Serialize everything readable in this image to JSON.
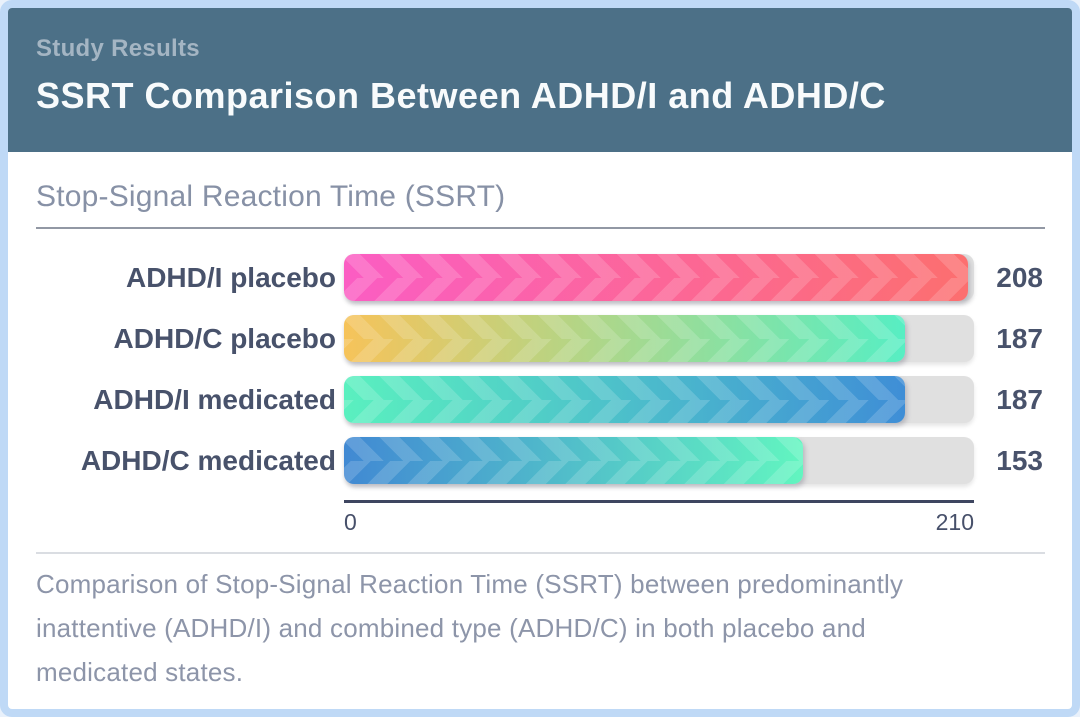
{
  "header": {
    "subtitle": "Study Results",
    "title": "SSRT Comparison Between ADHD/I and ADHD/C"
  },
  "chart_data": {
    "type": "bar",
    "orientation": "horizontal",
    "title": "Stop-Signal Reaction Time (SSRT)",
    "categories": [
      "ADHD/I placebo",
      "ADHD/C placebo",
      "ADHD/I medicated",
      "ADHD/C medicated"
    ],
    "values": [
      208,
      187,
      187,
      153
    ],
    "xlim": [
      0,
      210
    ],
    "x_tick_labels": [
      "0",
      "210"
    ],
    "bar_gradients": [
      [
        "#fb5dc3",
        "#fc6f6f"
      ],
      [
        "#f6c35a",
        "#57eec3"
      ],
      [
        "#5af0bf",
        "#3f8ed6"
      ],
      [
        "#4189d3",
        "#62f5c0"
      ]
    ],
    "track_color": "#e0e0e0",
    "grid": false,
    "legend": false
  },
  "caption": {
    "lines": [
      "Comparison of Stop-Signal Reaction Time (SSRT) between predominantly",
      "inattentive (ADHD/I) and combined type (ADHD/C) in both placebo and",
      "medicated states."
    ]
  },
  "colors": {
    "header_bg": "#4c7087",
    "frame_border": "#bfd9f6",
    "header_subtitle_text": "#a4b5c3",
    "header_title_text": "#f8fbfc",
    "section_title_text": "#8791a6",
    "label_text": "#48526b",
    "axis_line": "#3e4660",
    "caption_text": "#8d95a9"
  }
}
